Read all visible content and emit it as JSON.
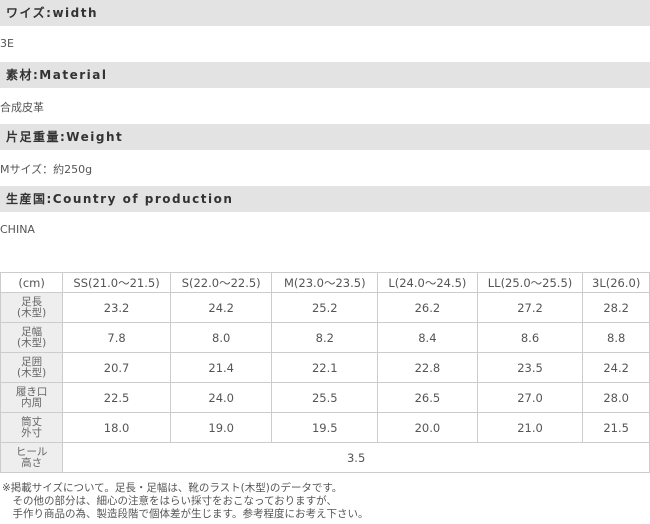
{
  "sections": [
    {
      "heading": "ワイズ:width",
      "value": "3E"
    },
    {
      "heading": "素材:Material",
      "value": "合成皮革"
    },
    {
      "heading": "片足重量:Weight",
      "value": "Mサイズ：約250g"
    },
    {
      "heading": "生産国:Country of production",
      "value": "CHINA"
    }
  ],
  "table": {
    "header": [
      "(cm)",
      "SS(21.0～21.5)",
      "S(22.0～22.5)",
      "M(23.0～23.5)",
      "L(24.0～24.5)",
      "LL(25.0～25.5)",
      "3L(26.0)"
    ],
    "rows": [
      {
        "label": [
          "足長",
          "(木型)"
        ],
        "cells": [
          "23.2",
          "24.2",
          "25.2",
          "26.2",
          "27.2",
          "28.2"
        ]
      },
      {
        "label": [
          "足幅",
          "(木型)"
        ],
        "cells": [
          "7.8",
          "8.0",
          "8.2",
          "8.4",
          "8.6",
          "8.8"
        ]
      },
      {
        "label": [
          "足囲",
          "(木型)"
        ],
        "cells": [
          "20.7",
          "21.4",
          "22.1",
          "22.8",
          "23.5",
          "24.2"
        ]
      },
      {
        "label": [
          "履き口",
          "内周"
        ],
        "cells": [
          "22.5",
          "24.0",
          "25.5",
          "26.5",
          "27.0",
          "28.0"
        ]
      },
      {
        "label": [
          "筒丈",
          "外寸"
        ],
        "cells": [
          "18.0",
          "19.0",
          "19.5",
          "20.0",
          "21.0",
          "21.5"
        ]
      },
      {
        "label": [
          "ヒール",
          "高さ"
        ],
        "cells": [
          "3.5"
        ]
      }
    ]
  },
  "notes": [
    "※掲載サイズについて。足長・足幅は、靴のラスト(木型)のデータです。",
    "　その他の部分は、細心の注意をはらい採寸をおこなっておりますが、",
    "　手作り商品の為、製造段階で個体差が生じます。参考程度にお考え下さい。"
  ]
}
